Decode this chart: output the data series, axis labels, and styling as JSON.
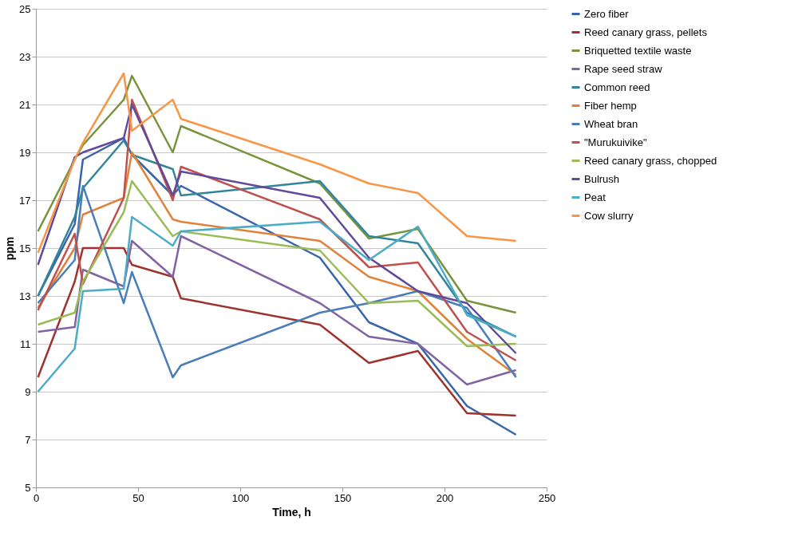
{
  "chart_data": {
    "type": "line",
    "xlabel": "Time, h",
    "ylabel": "ppm",
    "x": [
      1,
      19,
      23,
      43,
      47,
      67,
      71,
      139,
      163,
      187,
      211,
      235
    ],
    "xlim": [
      0,
      250
    ],
    "xticks": [
      0,
      50,
      100,
      150,
      200,
      250
    ],
    "ylim": [
      5,
      25
    ],
    "yticks": [
      5,
      7,
      9,
      11,
      13,
      15,
      17,
      19,
      21,
      23,
      25
    ],
    "grid": "y",
    "legend": "right",
    "marker": "none",
    "line_style": "solid",
    "series": [
      {
        "name": "Zero fiber",
        "color": "#3a64a8",
        "values": [
          13.0,
          16.0,
          18.7,
          19.6,
          18.9,
          17.2,
          17.6,
          14.6,
          11.9,
          11.0,
          8.4,
          7.2
        ]
      },
      {
        "name": "Reed canary grass, pellets",
        "color": "#a0322d",
        "values": [
          9.6,
          13.6,
          15.0,
          15.0,
          14.3,
          13.8,
          12.9,
          11.8,
          10.2,
          10.7,
          8.1,
          8.0
        ]
      },
      {
        "name": "Briquetted textile waste",
        "color": "#77933c",
        "values": [
          15.7,
          18.7,
          19.3,
          21.2,
          22.2,
          19.0,
          20.1,
          17.7,
          15.4,
          15.8,
          12.8,
          12.3
        ]
      },
      {
        "name": "Rape seed straw",
        "color": "#8064a2",
        "values": [
          11.5,
          11.7,
          14.1,
          13.4,
          15.3,
          13.8,
          15.5,
          12.7,
          11.3,
          11.0,
          9.3,
          9.9
        ]
      },
      {
        "name": "Common reed",
        "color": "#31849b",
        "values": [
          13.0,
          16.3,
          17.5,
          19.5,
          18.9,
          18.3,
          17.2,
          17.8,
          15.5,
          15.2,
          12.3,
          11.3
        ]
      },
      {
        "name": "Fiber hemp",
        "color": "#e0823a",
        "values": [
          12.5,
          15.0,
          16.4,
          17.1,
          19.0,
          16.2,
          16.1,
          15.3,
          13.8,
          13.2,
          11.2,
          9.7
        ]
      },
      {
        "name": "Wheat bran",
        "color": "#4a7ebb",
        "values": [
          12.7,
          14.5,
          17.6,
          12.7,
          14.0,
          9.6,
          10.1,
          12.3,
          12.7,
          13.2,
          12.5,
          9.6
        ]
      },
      {
        "name": "\"Murukuivike\"",
        "color": "#c0504d",
        "values": [
          12.4,
          15.6,
          13.5,
          17.1,
          21.2,
          17.0,
          18.4,
          16.2,
          14.2,
          14.4,
          11.5,
          10.3
        ]
      },
      {
        "name": "Reed canary grass, chopped",
        "color": "#9bbb59",
        "values": [
          11.8,
          12.3,
          13.6,
          16.5,
          17.8,
          15.5,
          15.7,
          14.9,
          12.7,
          12.8,
          10.9,
          11.0
        ]
      },
      {
        "name": "Bulrush",
        "color": "#604a9b",
        "values": [
          14.3,
          18.8,
          19.0,
          19.6,
          21.0,
          17.2,
          18.2,
          17.1,
          14.6,
          13.2,
          12.7,
          10.6
        ]
      },
      {
        "name": "Peat",
        "color": "#4bacc6",
        "values": [
          9.0,
          10.8,
          13.2,
          13.3,
          16.3,
          15.1,
          15.7,
          16.1,
          14.5,
          15.9,
          12.2,
          11.3
        ]
      },
      {
        "name": "Cow slurry",
        "color": "#f79646",
        "values": [
          14.8,
          18.7,
          19.4,
          22.3,
          19.9,
          21.2,
          20.4,
          18.5,
          17.7,
          17.3,
          15.5,
          15.3
        ]
      }
    ]
  }
}
